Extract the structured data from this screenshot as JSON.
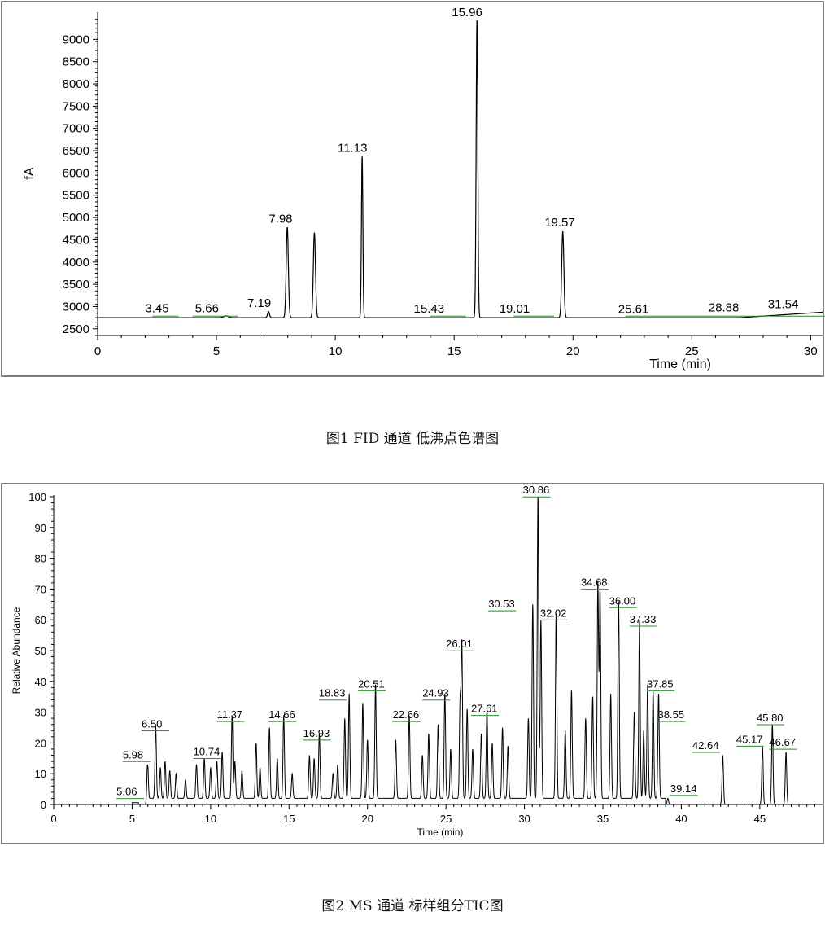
{
  "chart_data": [
    {
      "type": "line",
      "title": "",
      "xlabel": "Time (min)",
      "ylabel": "fA",
      "xlim": [
        0,
        30.5
      ],
      "ylim": [
        2350,
        9500
      ],
      "x_ticks": [
        0,
        5,
        10,
        15,
        20,
        25,
        30
      ],
      "y_ticks": [
        2500,
        3000,
        3500,
        4000,
        4500,
        5000,
        5500,
        6000,
        6500,
        7000,
        7500,
        8000,
        8500,
        9000
      ],
      "baseline": 2750,
      "grid": false,
      "series": [
        {
          "peaks": [
            {
              "rt": 5.4,
              "height": 2790,
              "width": 0.1
            },
            {
              "rt": 7.19,
              "height": 2890,
              "width": 0.04
            },
            {
              "rt": 7.98,
              "height": 4780,
              "width": 0.045
            },
            {
              "rt": 9.12,
              "height": 4660,
              "width": 0.045
            },
            {
              "rt": 11.13,
              "height": 6370,
              "width": 0.03
            },
            {
              "rt": 15.96,
              "height": 9430,
              "width": 0.035
            },
            {
              "rt": 19.57,
              "height": 4690,
              "width": 0.045
            }
          ]
        }
      ],
      "annotations": [
        "3.45",
        "5.66",
        "7.19",
        "7.98",
        "11.13",
        "15.43",
        "15.96",
        "19.01",
        "19.57",
        "25.61",
        "28.88",
        "31.54"
      ],
      "colors": {
        "trace": "#000000",
        "integration": "#2e8b2e",
        "frame": "#7f7f7f"
      }
    },
    {
      "type": "line",
      "title": "",
      "xlabel": "Time (min)",
      "ylabel": "Relative Abundance",
      "xlim": [
        0,
        49
      ],
      "ylim": [
        0,
        100
      ],
      "x_ticks": [
        0,
        5,
        10,
        15,
        20,
        25,
        30,
        35,
        40,
        45
      ],
      "y_ticks": [
        0,
        10,
        20,
        30,
        40,
        50,
        60,
        70,
        80,
        90,
        100
      ],
      "grid": false,
      "series": [
        {
          "peaks": [
            {
              "rt": 5.98,
              "height": 13
            },
            {
              "rt": 6.5,
              "height": 24
            },
            {
              "rt": 6.8,
              "height": 10
            },
            {
              "rt": 7.1,
              "height": 12
            },
            {
              "rt": 7.4,
              "height": 9
            },
            {
              "rt": 7.8,
              "height": 8
            },
            {
              "rt": 8.4,
              "height": 6
            },
            {
              "rt": 9.1,
              "height": 11
            },
            {
              "rt": 9.6,
              "height": 13
            },
            {
              "rt": 10.0,
              "height": 10
            },
            {
              "rt": 10.4,
              "height": 12
            },
            {
              "rt": 10.74,
              "height": 15
            },
            {
              "rt": 11.37,
              "height": 27
            },
            {
              "rt": 11.55,
              "height": 12
            },
            {
              "rt": 12.0,
              "height": 9
            },
            {
              "rt": 12.9,
              "height": 18
            },
            {
              "rt": 13.15,
              "height": 10
            },
            {
              "rt": 13.75,
              "height": 23
            },
            {
              "rt": 14.25,
              "height": 13
            },
            {
              "rt": 14.66,
              "height": 27
            },
            {
              "rt": 15.2,
              "height": 8
            },
            {
              "rt": 16.3,
              "height": 14
            },
            {
              "rt": 16.6,
              "height": 13
            },
            {
              "rt": 16.93,
              "height": 21
            },
            {
              "rt": 17.8,
              "height": 8
            },
            {
              "rt": 18.1,
              "height": 11
            },
            {
              "rt": 18.55,
              "height": 26
            },
            {
              "rt": 18.83,
              "height": 34
            },
            {
              "rt": 19.7,
              "height": 31
            },
            {
              "rt": 20.0,
              "height": 19
            },
            {
              "rt": 20.51,
              "height": 37
            },
            {
              "rt": 21.8,
              "height": 19
            },
            {
              "rt": 22.66,
              "height": 27
            },
            {
              "rt": 23.5,
              "height": 14
            },
            {
              "rt": 23.9,
              "height": 21
            },
            {
              "rt": 24.5,
              "height": 24
            },
            {
              "rt": 24.93,
              "height": 34
            },
            {
              "rt": 25.3,
              "height": 16
            },
            {
              "rt": 25.9,
              "height": 31
            },
            {
              "rt": 26.01,
              "height": 50
            },
            {
              "rt": 26.35,
              "height": 29
            },
            {
              "rt": 26.7,
              "height": 16
            },
            {
              "rt": 27.25,
              "height": 21
            },
            {
              "rt": 27.61,
              "height": 29
            },
            {
              "rt": 27.95,
              "height": 18
            },
            {
              "rt": 28.6,
              "height": 23
            },
            {
              "rt": 28.95,
              "height": 17
            },
            {
              "rt": 30.25,
              "height": 26
            },
            {
              "rt": 30.53,
              "height": 63
            },
            {
              "rt": 30.86,
              "height": 99
            },
            {
              "rt": 31.05,
              "height": 58
            },
            {
              "rt": 32.02,
              "height": 60
            },
            {
              "rt": 32.6,
              "height": 22
            },
            {
              "rt": 33.0,
              "height": 35
            },
            {
              "rt": 33.9,
              "height": 26
            },
            {
              "rt": 34.35,
              "height": 33
            },
            {
              "rt": 34.68,
              "height": 70
            },
            {
              "rt": 34.82,
              "height": 68
            },
            {
              "rt": 35.5,
              "height": 34
            },
            {
              "rt": 36.0,
              "height": 64
            },
            {
              "rt": 37.0,
              "height": 28
            },
            {
              "rt": 37.33,
              "height": 58
            },
            {
              "rt": 37.6,
              "height": 22
            },
            {
              "rt": 37.85,
              "height": 37
            },
            {
              "rt": 38.2,
              "height": 35
            },
            {
              "rt": 38.55,
              "height": 34
            },
            {
              "rt": 39.14,
              "height": 2
            },
            {
              "rt": 42.64,
              "height": 16
            },
            {
              "rt": 45.17,
              "height": 19
            },
            {
              "rt": 45.8,
              "height": 26
            },
            {
              "rt": 46.67,
              "height": 17
            }
          ]
        }
      ],
      "annotations": [
        "5.06",
        "5.98",
        "6.50",
        "10.74",
        "11.37",
        "14.66",
        "16.93",
        "18.83",
        "20.51",
        "22.66",
        "24.93",
        "26.01",
        "27.61",
        "30.53",
        "30.86",
        "32.02",
        "34.68",
        "36.00",
        "37.33",
        "37.85",
        "38.55",
        "39.14",
        "42.64",
        "45.17",
        "45.80",
        "46.67"
      ],
      "colors": {
        "trace": "#000000",
        "integration": "#2e8b2e",
        "frame": "#7f7f7f"
      }
    }
  ],
  "captions": {
    "fig1": "图1 FID 通道 低沸点色谱图",
    "fig2": "图2 MS 通道 标样组分TIC图"
  }
}
